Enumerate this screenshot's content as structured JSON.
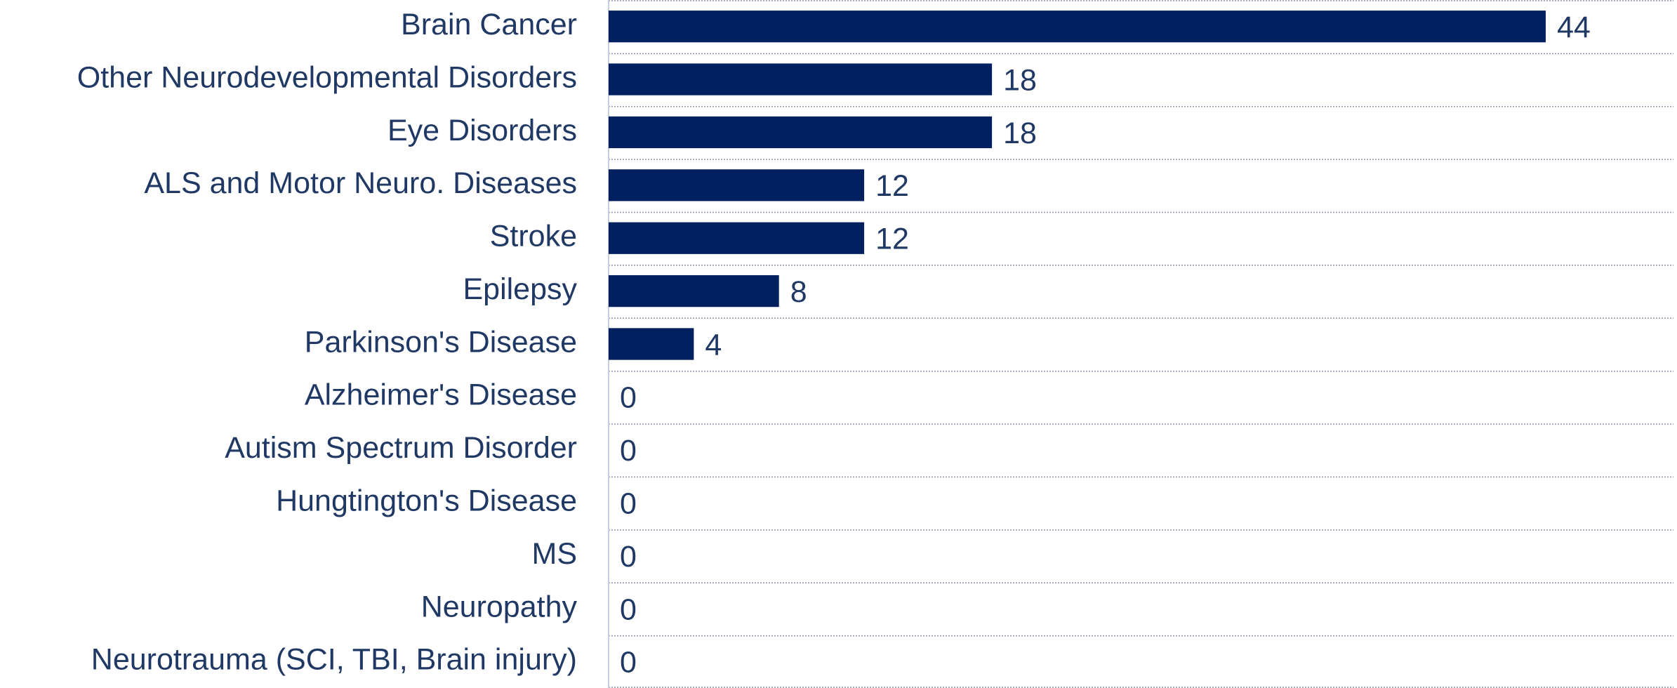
{
  "chart_data": {
    "type": "hbar",
    "categories": [
      "Brain Cancer",
      "Other Neurodevelopmental Disorders",
      "Eye Disorders",
      "ALS and Motor Neuro. Diseases",
      "Stroke",
      "Epilepsy",
      "Parkinson's Disease",
      "Alzheimer's Disease",
      "Autism Spectrum Disorder",
      "Hungtington's Disease",
      "MS",
      "Neuropathy",
      "Neurotrauma (SCI, TBI, Brain injury)"
    ],
    "values": [
      44,
      18,
      18,
      12,
      12,
      8,
      4,
      0,
      0,
      0,
      0,
      0,
      0
    ],
    "color": "#002060",
    "xlim": [
      0,
      50
    ],
    "grid": true
  }
}
